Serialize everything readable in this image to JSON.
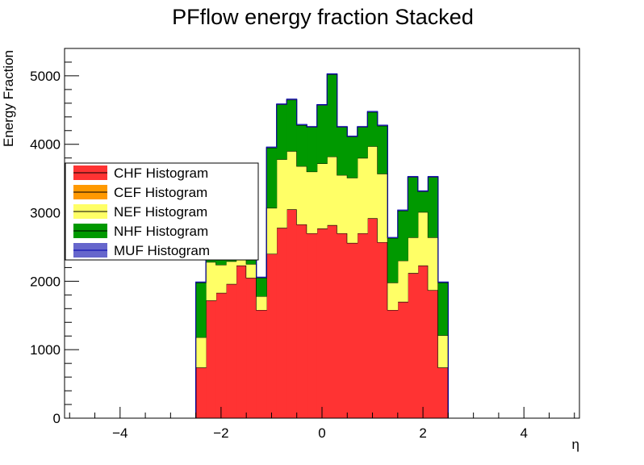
{
  "chart_data": {
    "type": "stacked-histogram",
    "title": "PFflow energy fraction Stacked",
    "xlabel": "η",
    "ylabel": "Energy Fraction",
    "xlim": [
      -5.1,
      5.1
    ],
    "ylim": [
      0,
      5400
    ],
    "bin_width": 0.2,
    "x_ticks": [
      -4,
      -2,
      0,
      2,
      4
    ],
    "x_tick_labels": [
      "−4",
      "−2",
      "0",
      "2",
      "4"
    ],
    "y_ticks": [
      0,
      1000,
      2000,
      3000,
      4000,
      5000
    ],
    "y_tick_labels": [
      "0",
      "1000",
      "2000",
      "3000",
      "4000",
      "5000"
    ],
    "grid": false,
    "legend_position": "left-middle",
    "bin_edges": [
      -2.5,
      -2.3,
      -2.1,
      -1.9,
      -1.7,
      -1.5,
      -1.3,
      -1.1,
      -0.9,
      -0.7,
      -0.5,
      -0.3,
      -0.1,
      0.1,
      0.3,
      0.5,
      0.7,
      0.9,
      1.1,
      1.3,
      1.5,
      1.7,
      1.9,
      2.1,
      2.3,
      2.5
    ],
    "series": [
      {
        "name": "CHF Histogram",
        "color": "#ff3333",
        "values": [
          740,
          1720,
          1830,
          1960,
          2230,
          2050,
          1580,
          2400,
          2780,
          3050,
          2830,
          2700,
          2770,
          2820,
          2700,
          2560,
          2700,
          2920,
          2570,
          1580,
          1700,
          2120,
          2230,
          1870,
          740
        ]
      },
      {
        "name": "CEF Histogram",
        "color": "#ff9900",
        "values": [
          0,
          0,
          0,
          0,
          0,
          0,
          0,
          0,
          0,
          0,
          0,
          0,
          0,
          0,
          0,
          0,
          0,
          0,
          0,
          0,
          0,
          0,
          0,
          0,
          0
        ]
      },
      {
        "name": "NEF Histogram",
        "color": "#ffff66",
        "values": [
          440,
          560,
          410,
          330,
          400,
          200,
          200,
          670,
          1000,
          850,
          850,
          900,
          950,
          1000,
          850,
          950,
          1100,
          1050,
          1000,
          400,
          600,
          520,
          780,
          770,
          470
        ]
      },
      {
        "name": "NHF Histogram",
        "color": "#009900",
        "values": [
          800,
          560,
          480,
          460,
          500,
          200,
          270,
          880,
          800,
          750,
          600,
          650,
          850,
          1200,
          700,
          600,
          450,
          500,
          700,
          650,
          730,
          880,
          300,
          880,
          770
        ]
      },
      {
        "name": "MUF Histogram",
        "color": "#6666cc",
        "values": [
          10,
          10,
          10,
          10,
          10,
          10,
          10,
          10,
          10,
          10,
          10,
          10,
          10,
          10,
          10,
          10,
          10,
          10,
          10,
          10,
          10,
          10,
          10,
          10,
          10
        ]
      }
    ]
  }
}
